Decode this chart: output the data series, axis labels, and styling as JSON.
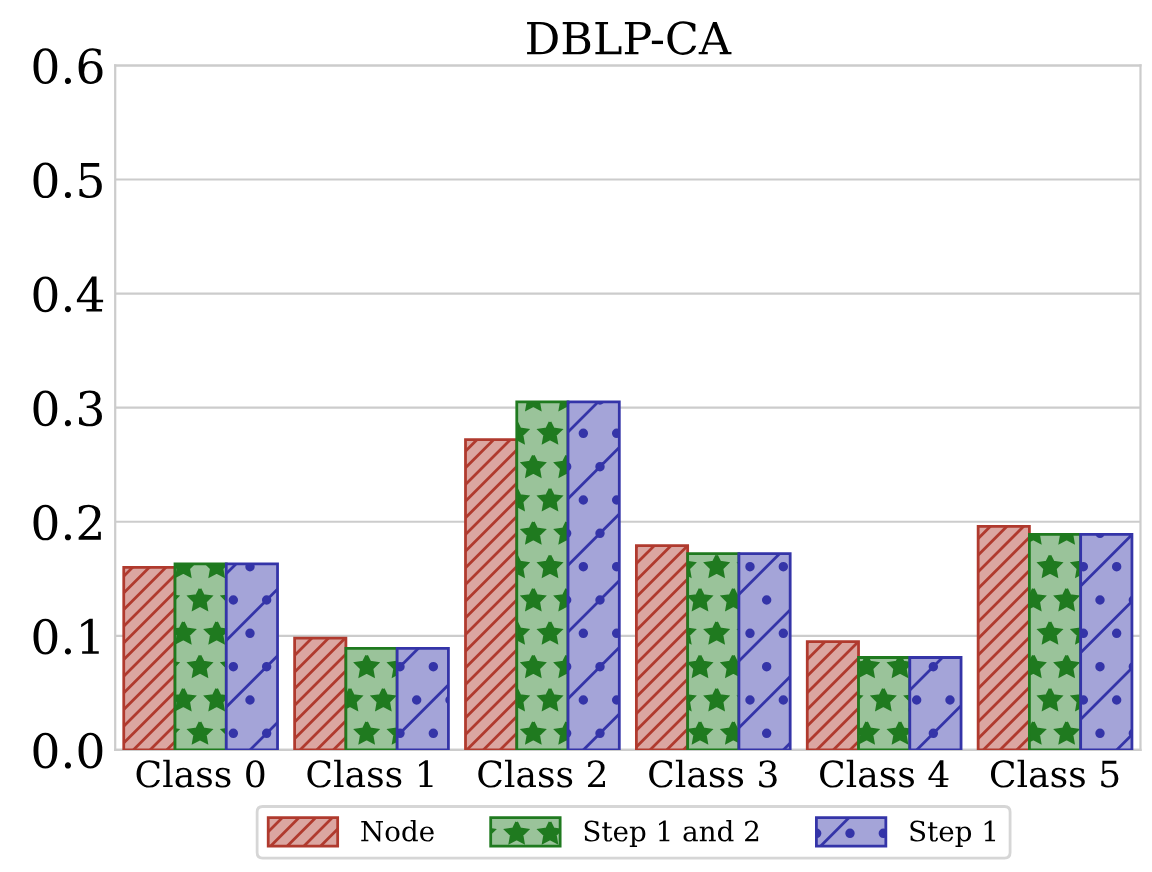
{
  "chart_data": {
    "type": "bar",
    "title": "DBLP-CA",
    "categories": [
      "Class 0",
      "Class 1",
      "Class 2",
      "Class 3",
      "Class 4",
      "Class 5"
    ],
    "series": [
      {
        "name": "Node",
        "color": "#b03a2e",
        "values": [
          0.16,
          0.098,
          0.272,
          0.179,
          0.095,
          0.196
        ]
      },
      {
        "name": "Step 1 and 2",
        "color": "#1f7a1f",
        "values": [
          0.163,
          0.089,
          0.305,
          0.172,
          0.081,
          0.189
        ]
      },
      {
        "name": "Step 1",
        "color": "#3434a8",
        "values": [
          0.163,
          0.089,
          0.305,
          0.172,
          0.081,
          0.189
        ]
      }
    ],
    "ylim": [
      0,
      0.6
    ],
    "yticks": [
      {
        "value": 0,
        "label": "0.0"
      },
      0.1,
      0.2,
      0.3,
      0.4,
      0.5,
      0.6
    ],
    "grid": "y",
    "legend": "bottom"
  }
}
